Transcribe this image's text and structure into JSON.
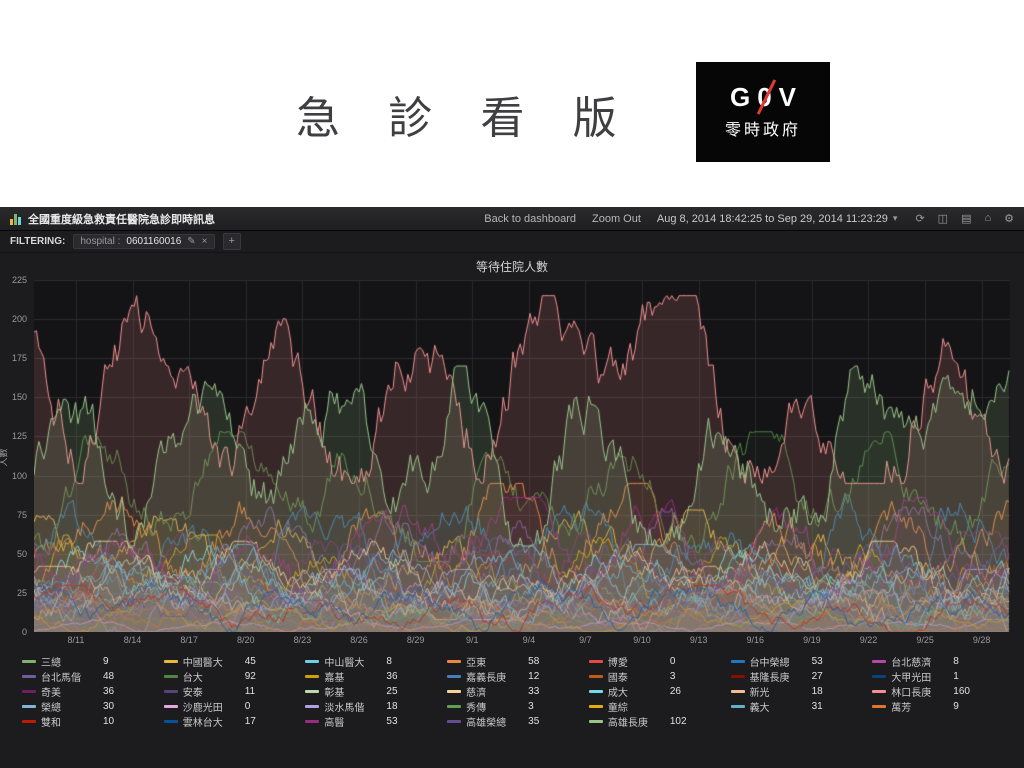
{
  "slide": {
    "title": "急 診 看 版",
    "logo_letters": [
      "G",
      "0",
      "V"
    ],
    "logo_subtitle": "零時政府"
  },
  "topbar": {
    "title": "全國重度級急救責任醫院急診即時訊息",
    "back": "Back to dashboard",
    "zoom_out": "Zoom Out",
    "time_range": "Aug 8, 2014 18:42:25 to Sep 29, 2014 11:23:29",
    "caret": "▾",
    "icons": {
      "refresh": "⟳",
      "save": "◫",
      "folder": "▤",
      "home": "⌂",
      "settings": "⚙"
    }
  },
  "filter": {
    "label": "FILTERING:",
    "field": "hospital :",
    "value": "0601160016",
    "edit_icon": "✎",
    "remove_icon": "×",
    "add_icon": "+"
  },
  "panel": {
    "title": "等待住院人數"
  },
  "chart_data": {
    "type": "line",
    "title": "等待住院人數",
    "xlabel": "",
    "ylabel": "人數",
    "ylim": [
      0,
      225
    ],
    "yticks": [
      225,
      200,
      175,
      150,
      125,
      100,
      75,
      50,
      25,
      0
    ],
    "xticks": [
      "8/11",
      "8/14",
      "8/17",
      "8/20",
      "8/23",
      "8/26",
      "8/29",
      "9/1",
      "9/4",
      "9/7",
      "9/10",
      "9/13",
      "9/16",
      "9/19",
      "9/22",
      "9/25",
      "9/28"
    ],
    "grid": true,
    "legend_position": "bottom",
    "series": [
      {
        "name": "三總",
        "value": "9",
        "color": "#7EB26D",
        "range": [
          0,
          32
        ]
      },
      {
        "name": "中國醫大",
        "value": "45",
        "color": "#EAB839",
        "range": [
          15,
          78
        ]
      },
      {
        "name": "中山醫大",
        "value": "8",
        "color": "#6ED0E0",
        "range": [
          0,
          30
        ]
      },
      {
        "name": "亞東",
        "value": "58",
        "color": "#EF843C",
        "range": [
          25,
          95
        ]
      },
      {
        "name": "博愛",
        "value": "0",
        "color": "#E24D42",
        "range": [
          0,
          12
        ]
      },
      {
        "name": "台中榮總",
        "value": "53",
        "color": "#1F78C1",
        "range": [
          20,
          88
        ]
      },
      {
        "name": "台北慈濟",
        "value": "8",
        "color": "#BA43A9",
        "range": [
          0,
          26
        ]
      },
      {
        "name": "台北馬偕",
        "value": "48",
        "color": "#705DA0",
        "range": [
          18,
          80
        ]
      },
      {
        "name": "台大",
        "value": "92",
        "color": "#508642",
        "range": [
          45,
          128
        ]
      },
      {
        "name": "嘉基",
        "value": "36",
        "color": "#CCA300",
        "range": [
          10,
          62
        ]
      },
      {
        "name": "嘉義長庚",
        "value": "12",
        "color": "#447EBC",
        "range": [
          0,
          35
        ]
      },
      {
        "name": "國泰",
        "value": "3",
        "color": "#C15C17",
        "range": [
          0,
          16
        ]
      },
      {
        "name": "基隆長庚",
        "value": "27",
        "color": "#890F02",
        "range": [
          5,
          52
        ]
      },
      {
        "name": "大甲光田",
        "value": "1",
        "color": "#0A437C",
        "range": [
          0,
          10
        ]
      },
      {
        "name": "奇美",
        "value": "36",
        "color": "#6D1F62",
        "range": [
          10,
          64
        ]
      },
      {
        "name": "安泰",
        "value": "11",
        "color": "#584477",
        "range": [
          0,
          26
        ]
      },
      {
        "name": "彰基",
        "value": "25",
        "color": "#B7DBAB",
        "range": [
          5,
          50
        ]
      },
      {
        "name": "慈濟",
        "value": "33",
        "color": "#F4D598",
        "range": [
          8,
          58
        ]
      },
      {
        "name": "成大",
        "value": "26",
        "color": "#70DBED",
        "range": [
          5,
          55
        ]
      },
      {
        "name": "新光",
        "value": "18",
        "color": "#F9BA8F",
        "range": [
          0,
          42
        ]
      },
      {
        "name": "林口長庚",
        "value": "160",
        "color": "#F29191",
        "range": [
          95,
          215
        ],
        "emphasis": true
      },
      {
        "name": "榮總",
        "value": "30",
        "color": "#82B5D8",
        "range": [
          8,
          56
        ]
      },
      {
        "name": "沙鹿光田",
        "value": "0",
        "color": "#E5A8E2",
        "range": [
          0,
          8
        ]
      },
      {
        "name": "淡水馬偕",
        "value": "18",
        "color": "#AEA2E0",
        "range": [
          0,
          40
        ]
      },
      {
        "name": "秀傳",
        "value": "3",
        "color": "#629E51",
        "range": [
          0,
          15
        ]
      },
      {
        "name": "童綜",
        "value": "",
        "color": "#E5AC0E",
        "range": [
          0,
          20
        ]
      },
      {
        "name": "義大",
        "value": "31",
        "color": "#64B0C8",
        "range": [
          6,
          56
        ]
      },
      {
        "name": "萬芳",
        "value": "9",
        "color": "#E0752D",
        "range": [
          0,
          26
        ]
      },
      {
        "name": "雙和",
        "value": "10",
        "color": "#BF1B00",
        "range": [
          0,
          30
        ]
      },
      {
        "name": "雲林台大",
        "value": "17",
        "color": "#0A50A1",
        "range": [
          0,
          36
        ]
      },
      {
        "name": "高醫",
        "value": "53",
        "color": "#962D82",
        "range": [
          20,
          86
        ]
      },
      {
        "name": "高雄榮總",
        "value": "35",
        "color": "#614D93",
        "range": [
          10,
          60
        ]
      },
      {
        "name": "高雄長庚",
        "value": "102",
        "color": "#9AC48A",
        "range": [
          55,
          170
        ],
        "emphasis": true
      }
    ]
  }
}
